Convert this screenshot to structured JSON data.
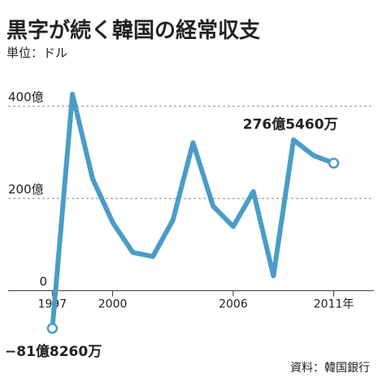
{
  "chart_data": {
    "type": "line",
    "title": "黒字が続く韓国の経常収支",
    "subtitle": "単位：ドル",
    "source": "資料：韓国銀行",
    "x": [
      1997,
      1998,
      1999,
      2000,
      2001,
      2002,
      2003,
      2004,
      2005,
      2006,
      2007,
      2008,
      2009,
      2010,
      2011
    ],
    "series": [
      {
        "color": "#4a9cc8",
        "values": [
          -81.826,
          426,
          243,
          148,
          83,
          74,
          153,
          321,
          183,
          139,
          215,
          32,
          327,
          293,
          276.546
        ],
        "value_labels": [
          "−81億8260万",
          null,
          null,
          null,
          null,
          null,
          null,
          null,
          null,
          null,
          null,
          null,
          null,
          null,
          "276億5460万"
        ]
      }
    ],
    "xlim": [
      1994.8,
      2013
    ],
    "xticks": [
      1997,
      2000,
      2006,
      {
        "value": 2011,
        "label": "2011年"
      }
    ],
    "ylim": [
      -110,
      440
    ],
    "yticks": [
      {
        "value": 0,
        "label": "0"
      },
      {
        "value": 200,
        "label": "200億"
      },
      {
        "value": 400,
        "label": "400億"
      }
    ],
    "grid": true
  }
}
